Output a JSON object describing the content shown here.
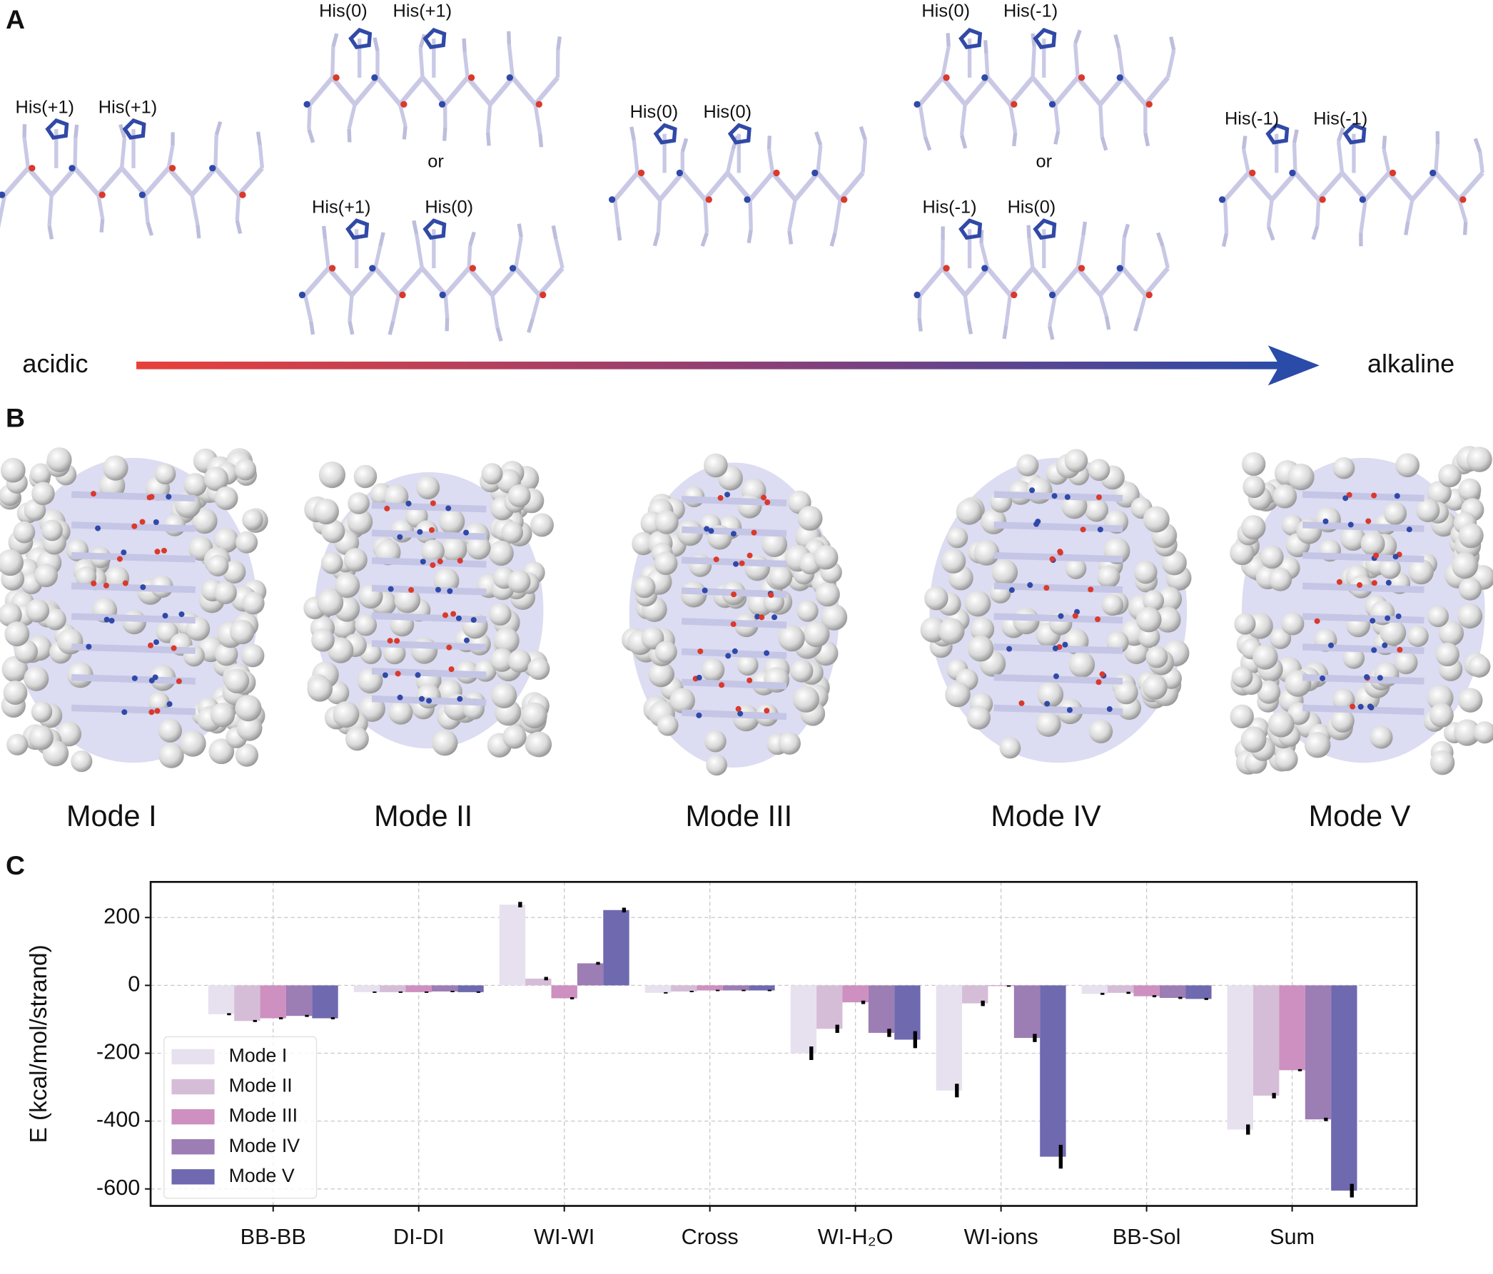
{
  "panel_a": {
    "label": "A",
    "peptides": [
      {
        "his": [
          "His(+1)",
          "His(+1)"
        ]
      },
      {
        "his": [
          "His(0)",
          "His(+1)"
        ]
      },
      {
        "his": [
          "His(+1)",
          "His(0)"
        ]
      },
      {
        "his": [
          "His(0)",
          "His(0)"
        ]
      },
      {
        "his": [
          "His(0)",
          "His(-1)"
        ]
      },
      {
        "his": [
          "His(-1)",
          "His(0)"
        ]
      },
      {
        "his": [
          "His(-1)",
          "His(-1)"
        ]
      }
    ],
    "or_labels": [
      "or",
      "or"
    ],
    "gradient_start": "acidic",
    "gradient_end": "alkaline"
  },
  "panel_b": {
    "label": "B",
    "modes": [
      "Mode I",
      "Mode II",
      "Mode III",
      "Mode IV",
      "Mode V"
    ]
  },
  "panel_c": {
    "label": "C"
  },
  "chart_data": {
    "type": "bar",
    "ylabel": "E (kcal/mol/strand)",
    "categories": [
      "BB-BB",
      "DI-DI",
      "WI-WI",
      "Cross",
      "WI-H₂O",
      "WI-ions",
      "BB-Sol",
      "Sum"
    ],
    "series": [
      {
        "name": "Mode I",
        "color": "#e7e1ef",
        "values": [
          -85,
          -20,
          238,
          -22,
          -200,
          -310,
          -25,
          -425
        ],
        "errors": [
          3,
          2,
          8,
          2,
          20,
          20,
          3,
          15
        ]
      },
      {
        "name": "Mode II",
        "color": "#d5bdd7",
        "values": [
          -105,
          -20,
          20,
          -18,
          -128,
          -53,
          -22,
          -325
        ],
        "errors": [
          3,
          2,
          5,
          2,
          12,
          8,
          3,
          8
        ]
      },
      {
        "name": "Mode III",
        "color": "#cd90c0",
        "values": [
          -97,
          -20,
          -38,
          -15,
          -50,
          -2,
          -32,
          -250
        ],
        "errors": [
          3,
          2,
          3,
          2,
          5,
          2,
          3,
          3
        ]
      },
      {
        "name": "Mode IV",
        "color": "#9c7db4",
        "values": [
          -90,
          -18,
          65,
          -15,
          -140,
          -155,
          -37,
          -395
        ],
        "errors": [
          3,
          2,
          4,
          2,
          12,
          12,
          3,
          5
        ]
      },
      {
        "name": "Mode V",
        "color": "#6f69b0",
        "values": [
          -97,
          -20,
          222,
          -15,
          -160,
          -505,
          -40,
          -605
        ],
        "errors": [
          3,
          2,
          7,
          2,
          25,
          35,
          3,
          20
        ]
      }
    ],
    "ylim": [
      -650,
      305
    ],
    "yticks": [
      200,
      0,
      -200,
      -400,
      -600
    ],
    "grid": true,
    "legend": "lower left"
  }
}
